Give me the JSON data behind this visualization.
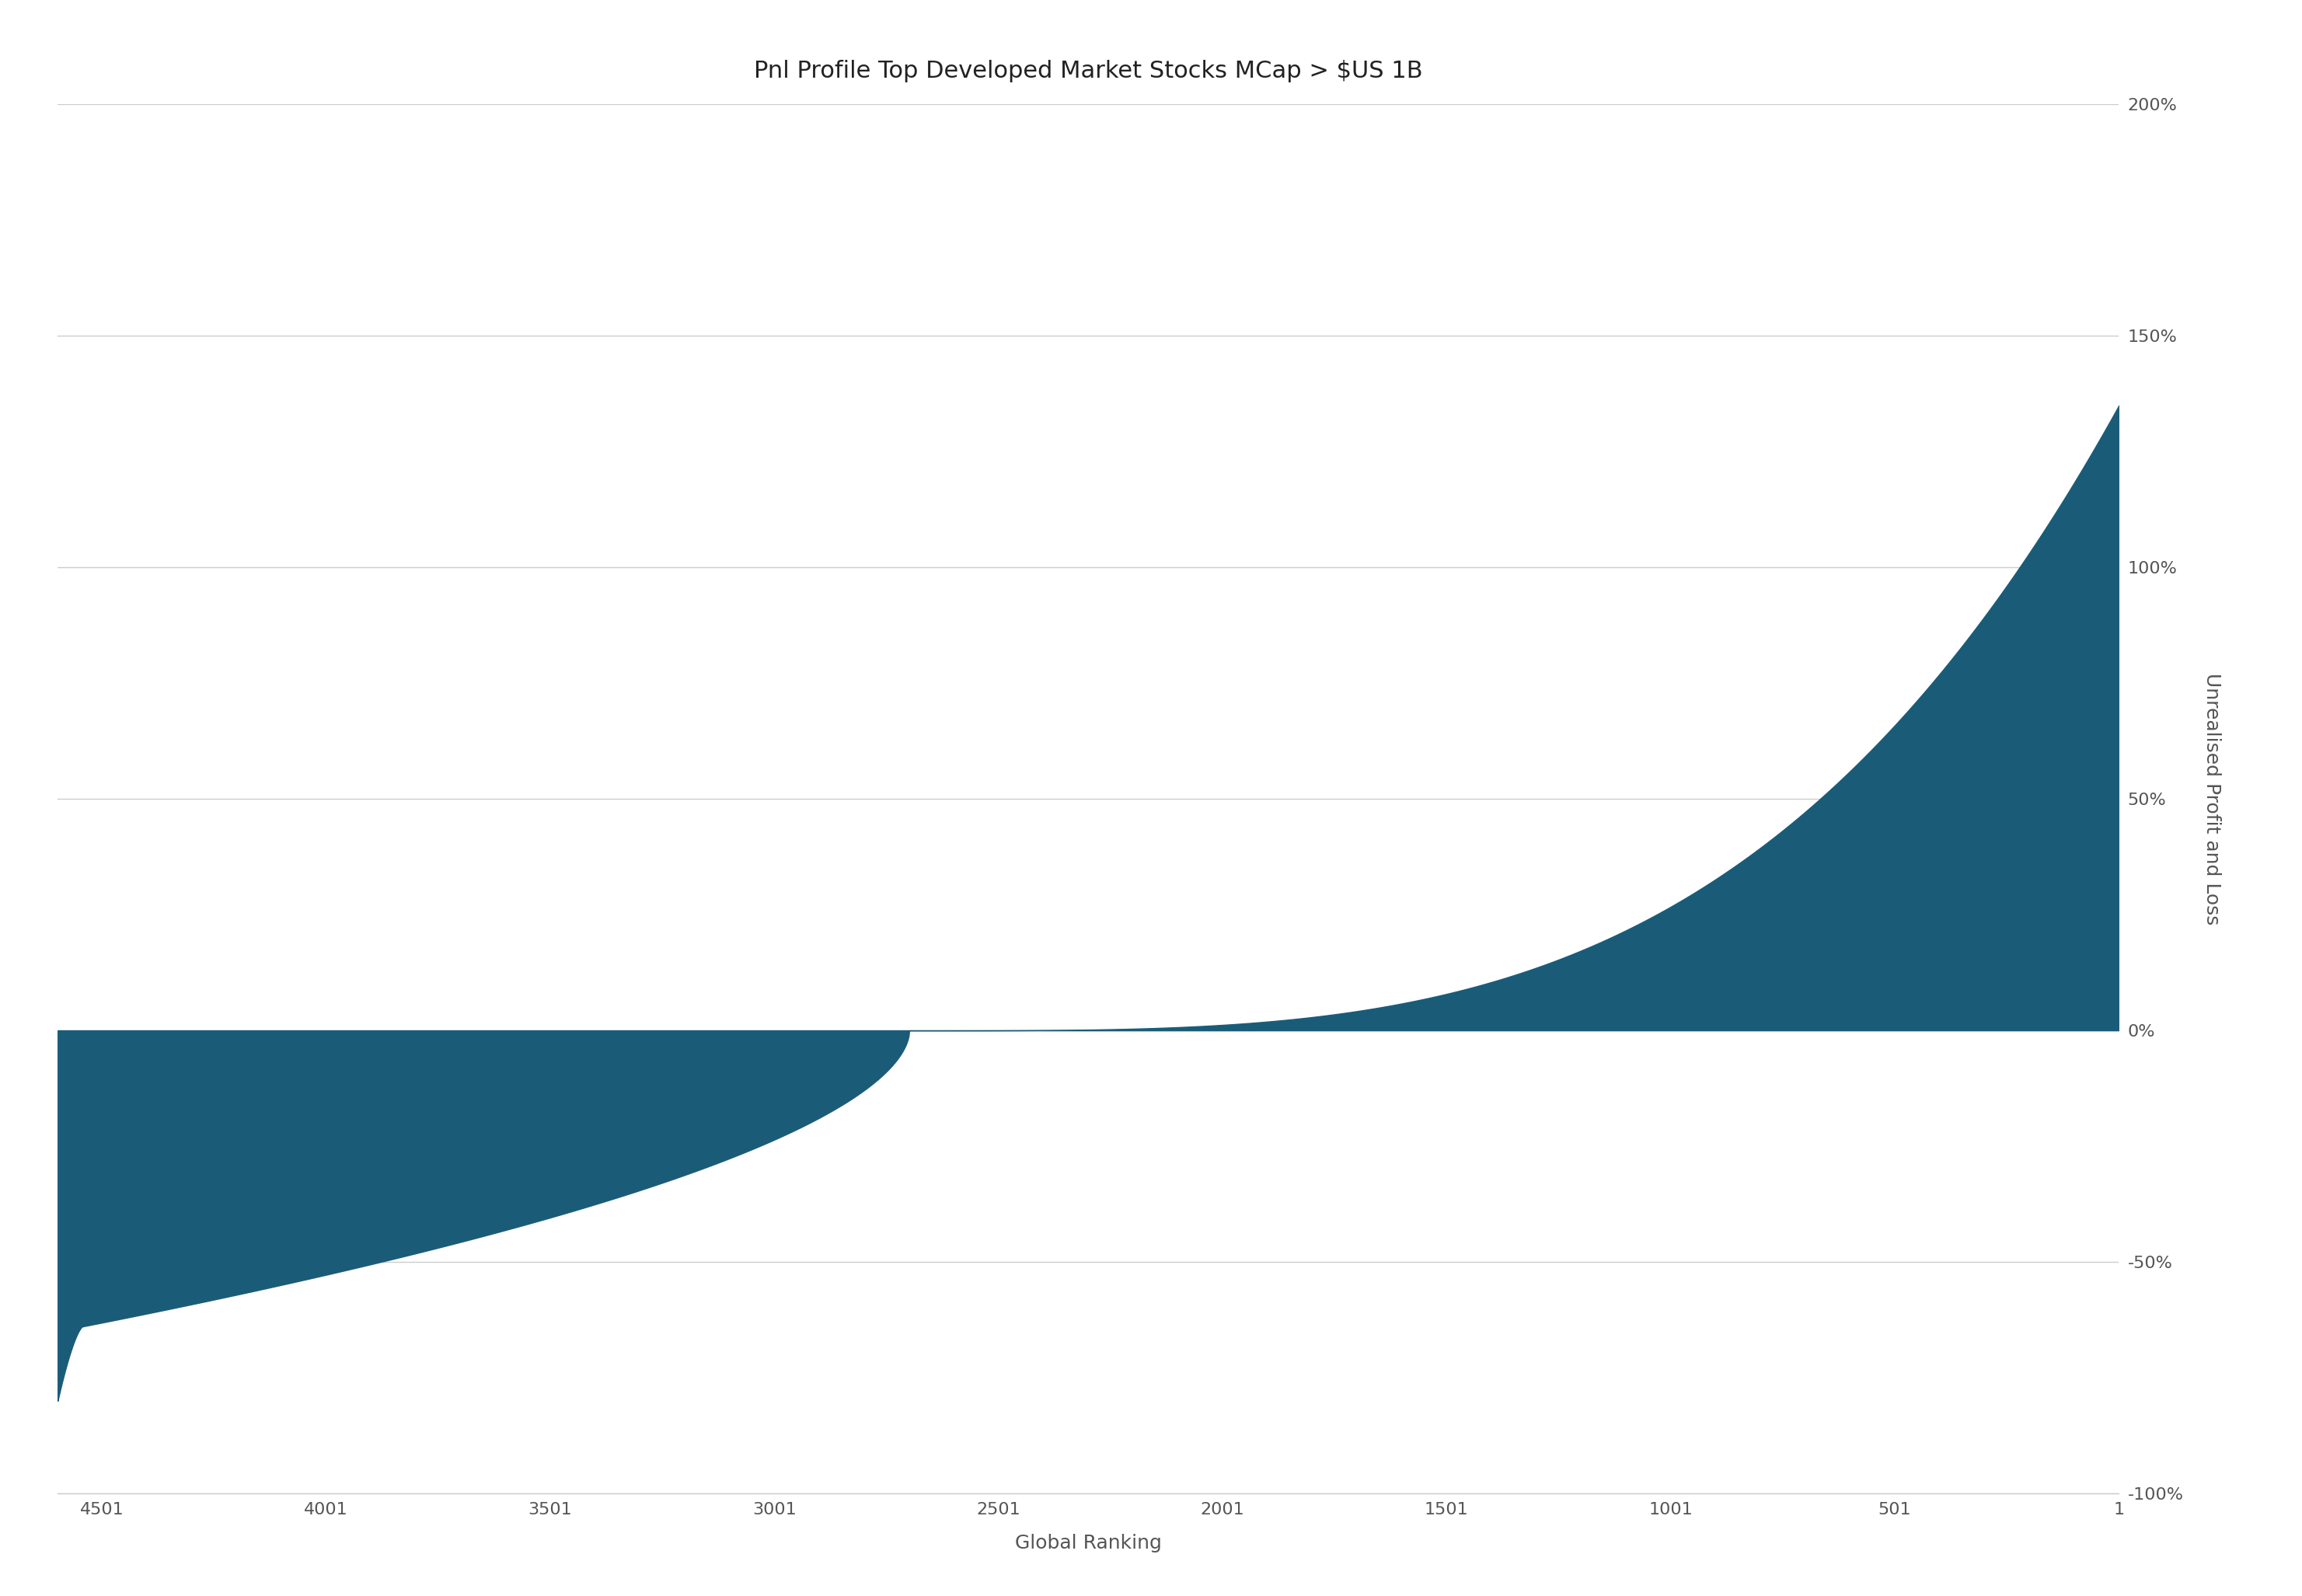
{
  "title": "Pnl Profile Top Developed Market Stocks MCap > $US 1B",
  "xlabel": "Global Ranking",
  "ylabel": "Unrealised Profit and Loss",
  "fill_color": "#1a5c78",
  "background_color": "#ffffff",
  "x_min": 1,
  "x_max": 4600,
  "y_min": -100,
  "y_max": 200,
  "x_ticks": [
    4501,
    4001,
    3501,
    3001,
    2501,
    2001,
    1501,
    1001,
    501,
    1
  ],
  "y_ticks": [
    -100,
    -50,
    0,
    50,
    100,
    150,
    200
  ],
  "title_fontsize": 22,
  "label_fontsize": 18,
  "tick_fontsize": 16,
  "grid_color": "#cccccc",
  "text_color": "#555555",
  "n_points": 4600,
  "zero_crossing_rank": 2700,
  "min_val": -65,
  "max_val": 135
}
